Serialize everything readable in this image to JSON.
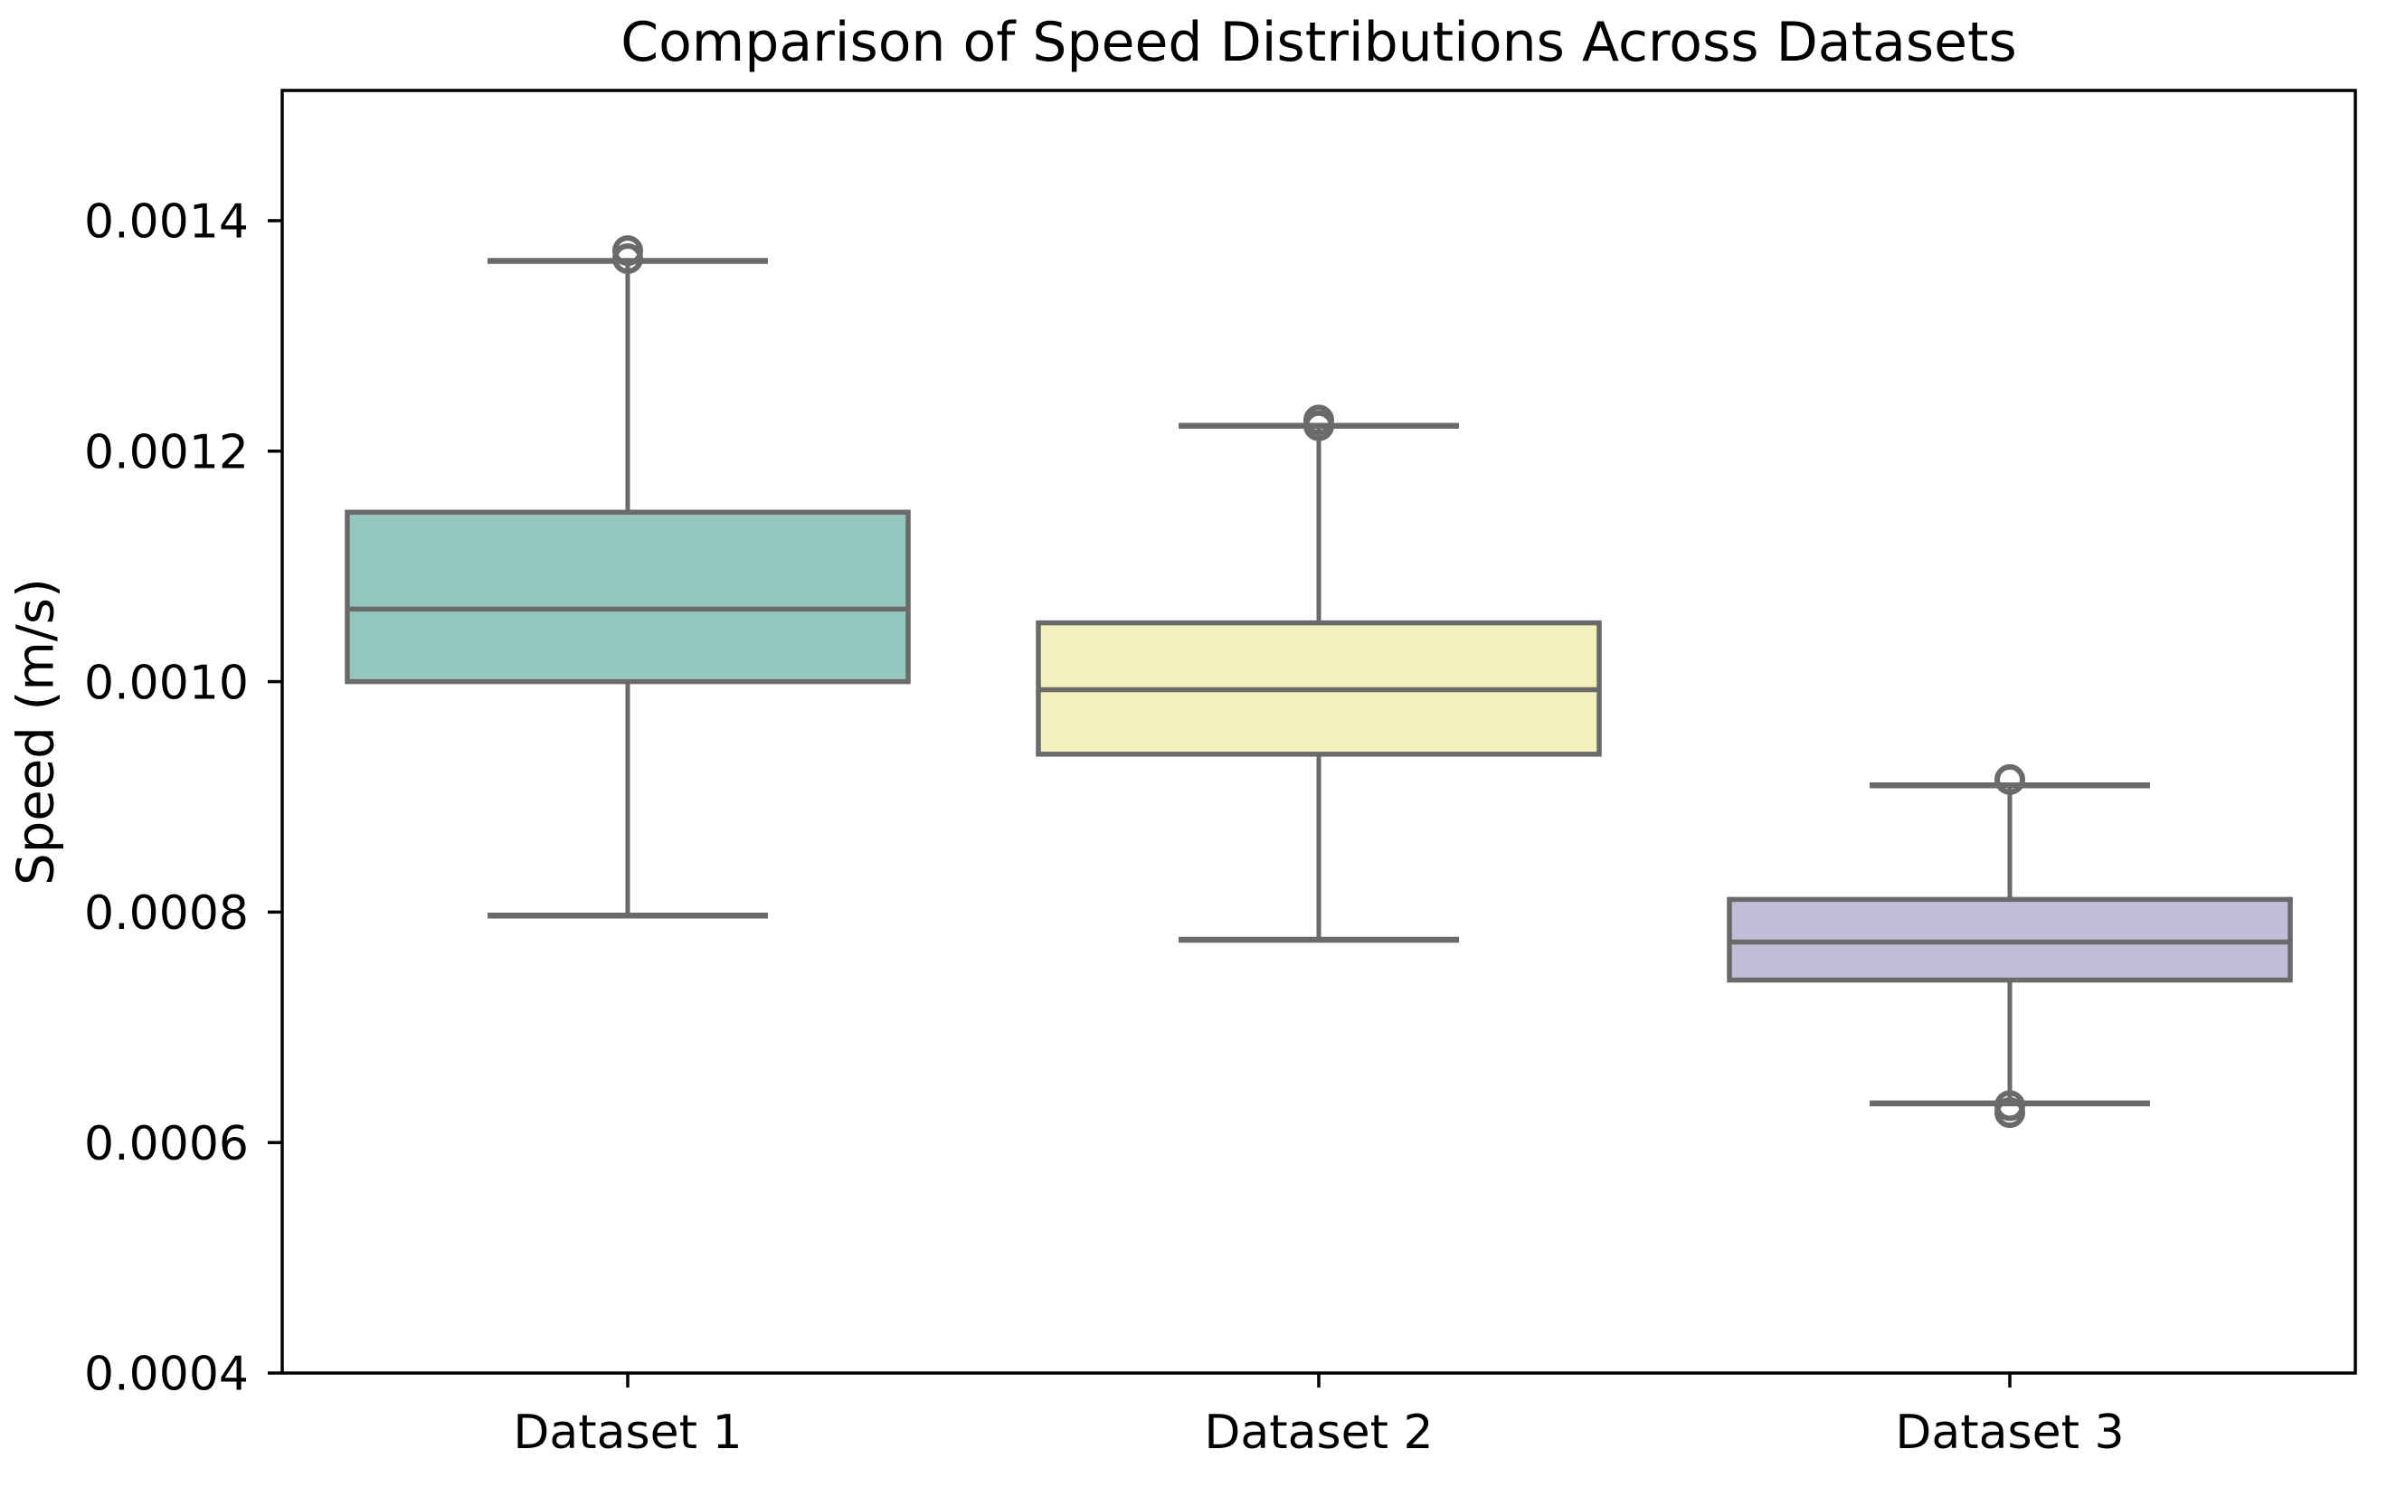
{
  "chart_data": {
    "type": "box",
    "title": "Comparison of Speed Distributions Across Datasets",
    "xlabel": "",
    "ylabel": "Speed (m/s)",
    "categories": [
      "Dataset 1",
      "Dataset 2",
      "Dataset 3"
    ],
    "ylim": [
      0.0004,
      0.001513
    ],
    "yticks": [
      0.0004,
      0.0006,
      0.0008,
      0.001,
      0.0012,
      0.0014
    ],
    "ytick_labels": [
      "0.0004",
      "0.0006",
      "0.0008",
      "0.0010",
      "0.0012",
      "0.0014"
    ],
    "grid": false,
    "legend": false,
    "series": [
      {
        "name": "Dataset 1",
        "whisker_low": 0.000797,
        "q1": 0.001,
        "median": 0.001063,
        "q3": 0.001147,
        "whisker_high": 0.001365,
        "outliers": [
          0.001367,
          0.001374
        ],
        "fill_color": "#94C8BE"
      },
      {
        "name": "Dataset 2",
        "whisker_low": 0.000776,
        "q1": 0.000937,
        "median": 0.000993,
        "q3": 0.001051,
        "whisker_high": 0.001222,
        "outliers": [
          0.001222,
          0.001227
        ],
        "fill_color": "#F4F2BC"
      },
      {
        "name": "Dataset 3",
        "whisker_low": 0.000634,
        "q1": 0.000741,
        "median": 0.000774,
        "q3": 0.000811,
        "whisker_high": 0.00091,
        "outliers": [
          0.000915,
          0.000632,
          0.000626
        ],
        "fill_color": "#C1BDD6"
      }
    ],
    "colors": {
      "box_edge": "#6A6A6A",
      "whisker": "#6A6A6A",
      "cap": "#6A6A6A",
      "median": "#6A6A6A",
      "flier_edge": "#6A6A6A",
      "axis": "#000000",
      "background": "#FFFFFF"
    }
  }
}
